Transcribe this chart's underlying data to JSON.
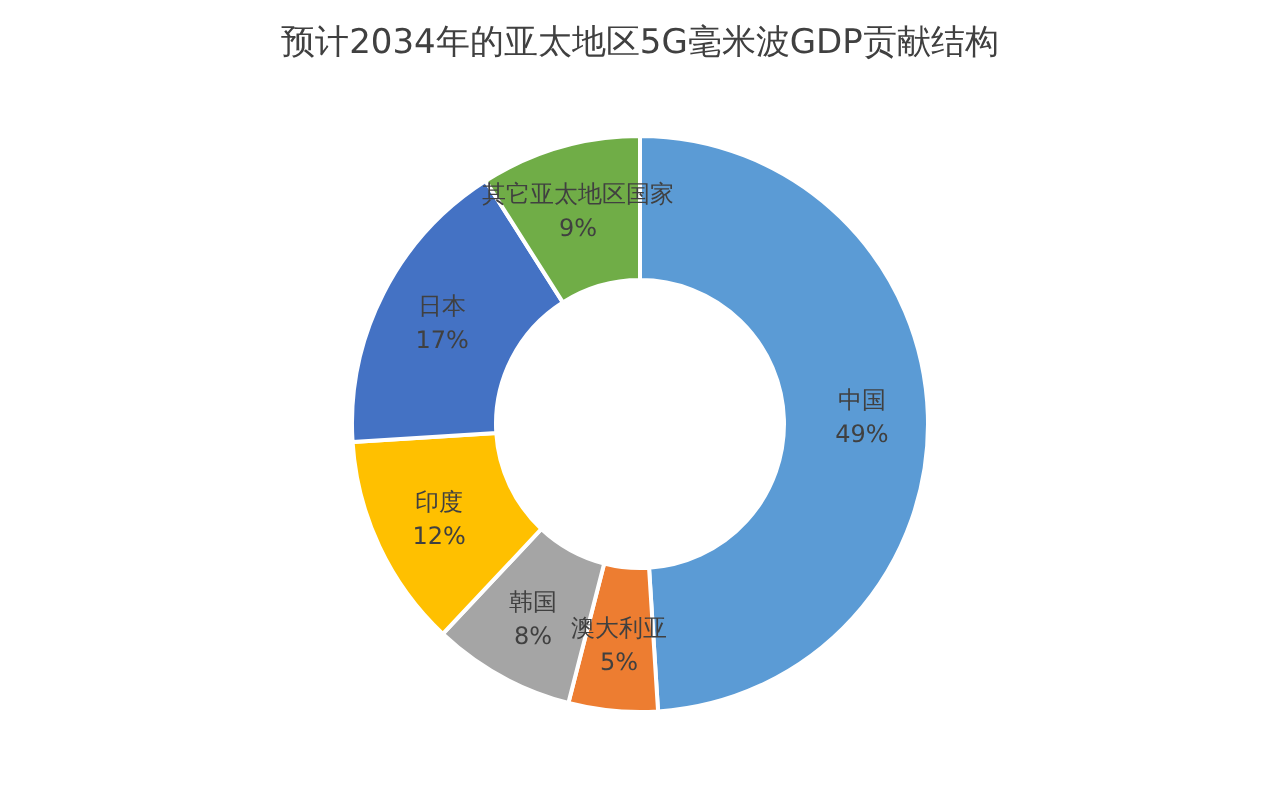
{
  "chart_data": {
    "type": "donut",
    "title": "预计2034年的亚太地区5G毫米波GDP贡献结构",
    "categories": [
      "中国",
      "澳大利亚",
      "韩国",
      "印度",
      "日本",
      "其它亚太地区国家"
    ],
    "values": [
      49,
      5,
      8,
      12,
      17,
      9
    ],
    "value_labels": [
      "49%",
      "5%",
      "8%",
      "12%",
      "17%",
      "9%"
    ],
    "colors": [
      "#5b9bd5",
      "#ed7d31",
      "#a5a5a5",
      "#ffc000",
      "#4472c4",
      "#70ad47"
    ],
    "legend": false
  }
}
